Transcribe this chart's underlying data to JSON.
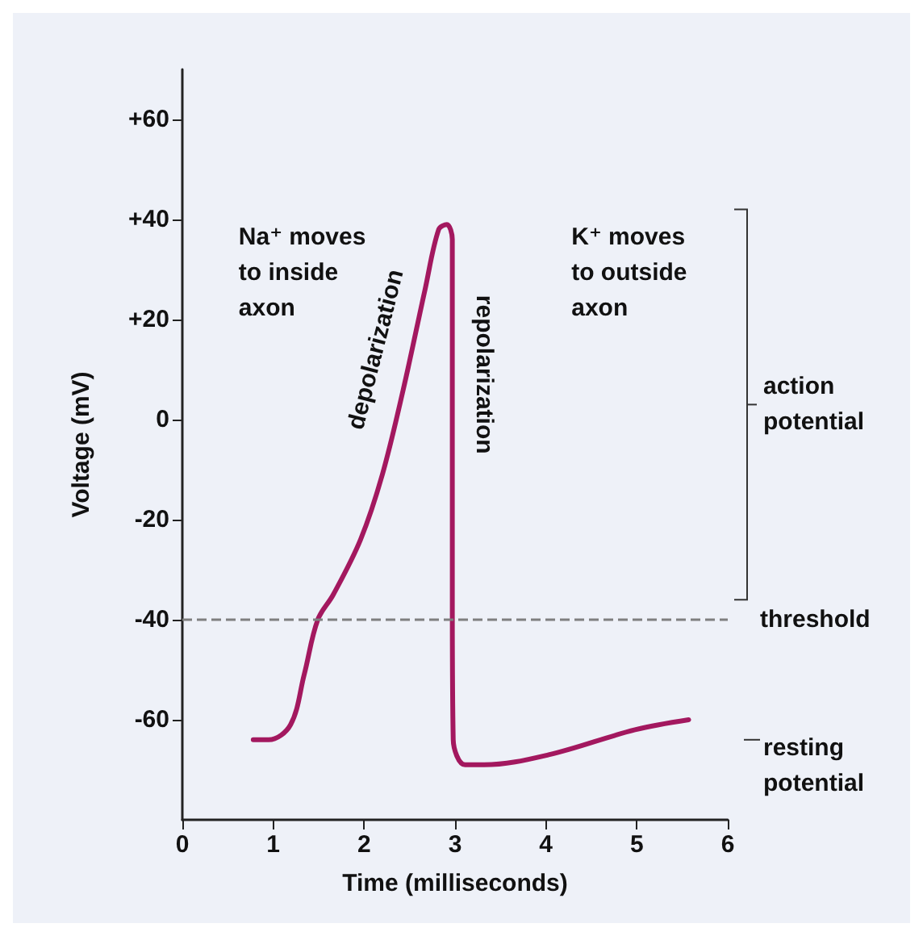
{
  "chart_data": {
    "type": "line",
    "xlabel": "Time (milliseconds)",
    "ylabel": "Voltage (mV)",
    "x": [
      0.78,
      0.95,
      1.19,
      1.34,
      1.49,
      1.66,
      1.96,
      2.2,
      2.43,
      2.67,
      2.82,
      2.91,
      2.97,
      2.97,
      2.98,
      3.11,
      3.32,
      4.03,
      4.98,
      5.57
    ],
    "series": [
      {
        "color": "#a3185f",
        "values": [
          -64,
          -64,
          -61,
          -51,
          -40,
          -35,
          -24,
          -11,
          6,
          26,
          38,
          39,
          36,
          -37,
          -64,
          -69,
          -69,
          -67,
          -62,
          -60
        ]
      }
    ],
    "xlim": [
      0,
      6
    ],
    "xticks": [
      0,
      1,
      2,
      3,
      4,
      5,
      6
    ],
    "ylim": [
      -80,
      70
    ],
    "yticks": [
      {
        "value": 60,
        "label": "+60"
      },
      {
        "value": 40,
        "label": "+40"
      },
      {
        "value": 20,
        "label": "+20"
      },
      0,
      -20,
      -40,
      -60
    ],
    "grid": false,
    "marker": "none",
    "line_style": "solid",
    "ref_lines": [
      {
        "axis": "y",
        "value": -40,
        "label": "threshold",
        "color": "#7f7f7f",
        "line_style": "dashed"
      }
    ],
    "annotations": [
      "Na⁺ moves\nto inside\naxon",
      "depolarization",
      "repolarization",
      "K⁺ moves\nto outside\naxon",
      "action potential",
      "resting potential"
    ]
  }
}
